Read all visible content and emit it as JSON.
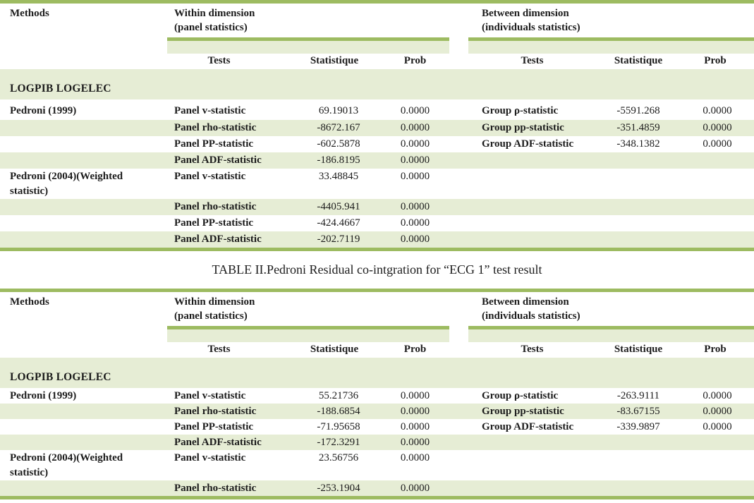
{
  "colors": {
    "accent_bar": "#9dbb61",
    "shaded_band": "#e6edd5",
    "text": "#1c1c1c"
  },
  "caption": "TABLE II.Pedroni Residual co-intgration for “ECG 1” test result",
  "tables": [
    {
      "header": {
        "methods": "Methods",
        "within": [
          "Within dimension",
          "(panel statistics)"
        ],
        "between": [
          "Between dimension",
          "(individuals statistics)"
        ]
      },
      "columns": {
        "tests": "Tests",
        "stat": "Statistique",
        "prob": "Prob"
      },
      "group": "LOGPIB LOGELEC",
      "rows": [
        {
          "method": "Pedroni (1999)",
          "test": "Panel v-statistic",
          "stat": "69.19013",
          "prob": "0.0000",
          "gtest": "Group ρ-statistic",
          "gstat": "-5591.268",
          "gprob": "0.0000",
          "shaded": false
        },
        {
          "test": "Panel rho-statistic",
          "stat": "-8672.167",
          "prob": "0.0000",
          "gtest": "Group pp-statistic",
          "gstat": "-351.4859",
          "gprob": "0.0000",
          "shaded": true
        },
        {
          "test": "Panel PP-statistic",
          "stat": "-602.5878",
          "prob": "0.0000",
          "gtest": "Group ADF-statistic",
          "gstat": "-348.1382",
          "gprob": "0.0000",
          "shaded": false
        },
        {
          "test": "Panel ADF-statistic",
          "stat": "-186.8195",
          "prob": "0.0000",
          "shaded": true
        },
        {
          "method": "Pedroni (2004)(Weighted statistic)",
          "test": "Panel v-statistic",
          "stat": "33.48845",
          "prob": "0.0000",
          "shaded": false
        },
        {
          "test": "Panel rho-statistic",
          "stat": "-4405.941",
          "prob": "0.0000",
          "shaded": true
        },
        {
          "test": "Panel PP-statistic",
          "stat": "-424.4667",
          "prob": "0.0000",
          "shaded": false
        },
        {
          "test": "Panel ADF-statistic",
          "stat": "-202.7119",
          "prob": "0.0000",
          "shaded": true
        }
      ]
    },
    {
      "header": {
        "methods": "Methods",
        "within": [
          "Within dimension",
          "(panel statistics)"
        ],
        "between": [
          "Between dimension",
          "(individuals statistics)"
        ]
      },
      "columns": {
        "tests": "Tests",
        "stat": "Statistique",
        "prob": "Prob"
      },
      "group": "LOGPIB LOGELEC",
      "rows": [
        {
          "method": "Pedroni (1999)",
          "test": "Panel v-statistic",
          "stat": "55.21736",
          "prob": "0.0000",
          "gtest": "Group ρ-statistic",
          "gstat": "-263.9111",
          "gprob": "0.0000",
          "shaded": false
        },
        {
          "test": "Panel rho-statistic",
          "stat": "-188.6854",
          "prob": "0.0000",
          "gtest": "Group pp-statistic",
          "gstat": "-83.67155",
          "gprob": "0.0000",
          "shaded": true
        },
        {
          "test": "Panel PP-statistic",
          "stat": "-71.95658",
          "prob": "0.0000",
          "gtest": "Group ADF-statistic",
          "gstat": "-339.9897",
          "gprob": "0.0000",
          "shaded": false
        },
        {
          "test": "Panel ADF-statistic",
          "stat": "-172.3291",
          "prob": "0.0000",
          "shaded": true
        },
        {
          "method": "Pedroni (2004)(Weighted statistic)",
          "test": "Panel v-statistic",
          "stat": "23.56756",
          "prob": "0.0000",
          "shaded": false
        },
        {
          "test": "Panel rho-statistic",
          "stat": "-253.1904",
          "prob": "0.0000",
          "shaded": true
        }
      ]
    }
  ]
}
